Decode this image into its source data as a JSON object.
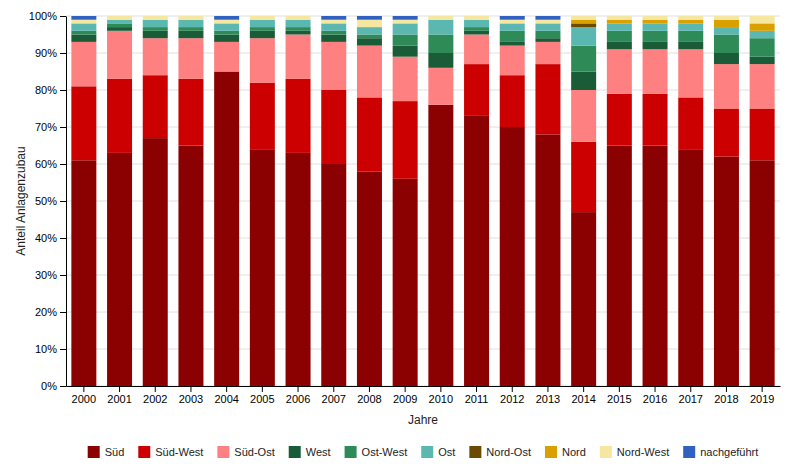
{
  "chart_data": {
    "type": "bar",
    "stacked": true,
    "xlabel": "Jahre",
    "ylabel": "Anteil Anlagenzubau",
    "categories": [
      "2000",
      "2001",
      "2002",
      "2003",
      "2004",
      "2005",
      "2006",
      "2007",
      "2008",
      "2009",
      "2010",
      "2011",
      "2012",
      "2013",
      "2014",
      "2015",
      "2016",
      "2017",
      "2018",
      "2019"
    ],
    "series": [
      {
        "name": "Süd",
        "color": "#8B0000",
        "values": [
          61,
          63,
          67,
          65,
          85,
          64,
          63,
          60,
          58,
          56,
          76,
          73,
          70,
          68,
          47,
          65,
          65,
          64,
          62,
          61
        ]
      },
      {
        "name": "Süd-West",
        "color": "#CC0000",
        "values": [
          20,
          20,
          17,
          18,
          0,
          18,
          20,
          20,
          20,
          21,
          0,
          14,
          14,
          19,
          19,
          14,
          14,
          14,
          13,
          14
        ]
      },
      {
        "name": "Süd-Ost",
        "color": "#FF8080",
        "values": [
          12,
          13,
          10,
          11,
          8,
          12,
          12,
          13,
          14,
          12,
          10,
          8,
          8,
          6,
          14,
          12,
          12,
          13,
          12,
          12
        ]
      },
      {
        "name": "West",
        "color": "#1A5C38",
        "values": [
          2,
          1,
          2,
          2,
          2,
          2,
          1,
          2,
          2,
          3,
          4,
          1,
          1,
          1,
          5,
          2,
          2,
          2,
          3,
          2
        ]
      },
      {
        "name": "Ost-West",
        "color": "#2E8B57",
        "values": [
          1,
          1,
          1,
          1,
          1,
          1,
          1,
          1,
          1,
          3,
          5,
          1,
          3,
          2,
          7,
          3,
          3,
          3,
          5,
          5
        ]
      },
      {
        "name": "Ost",
        "color": "#5BB8B0",
        "values": [
          2,
          1,
          2,
          2,
          2,
          2,
          2,
          2,
          2,
          3,
          4,
          2,
          2,
          2,
          5,
          2,
          2,
          2,
          2,
          2
        ]
      },
      {
        "name": "Nord-Ost",
        "color": "#6B4A00",
        "values": [
          0,
          0,
          0,
          0,
          0,
          0,
          0,
          0,
          0,
          0,
          0,
          0,
          0,
          0,
          1,
          0,
          0,
          0,
          0,
          0
        ]
      },
      {
        "name": "Nord",
        "color": "#DAA000",
        "values": [
          0,
          0,
          0,
          0,
          0,
          0,
          0,
          0,
          0,
          0,
          0,
          0,
          0,
          0,
          1,
          1,
          1,
          1,
          2,
          2
        ]
      },
      {
        "name": "Nord-West",
        "color": "#F5E6A0",
        "values": [
          1,
          1,
          1,
          1,
          1,
          1,
          1,
          1,
          2,
          1,
          1,
          1,
          1,
          1,
          1,
          1,
          1,
          1,
          1,
          2
        ]
      },
      {
        "name": "nachgeführt",
        "color": "#3060C0",
        "values": [
          1,
          0,
          0,
          0,
          1,
          0,
          0,
          1,
          1,
          1,
          0,
          0,
          1,
          1,
          0,
          0,
          0,
          0,
          0,
          0
        ]
      }
    ],
    "ylim": [
      0,
      100
    ],
    "yticks": [
      {
        "value": 0,
        "label": "0%"
      },
      {
        "value": 10,
        "label": "10%"
      },
      {
        "value": 20,
        "label": "20%"
      },
      {
        "value": 30,
        "label": "30%"
      },
      {
        "value": 40,
        "label": "40%"
      },
      {
        "value": 50,
        "label": "50%"
      },
      {
        "value": 60,
        "label": "60%"
      },
      {
        "value": 70,
        "label": "70%"
      },
      {
        "value": 80,
        "label": "80%"
      },
      {
        "value": 90,
        "label": "90%"
      },
      {
        "value": 100,
        "label": "100%"
      }
    ],
    "grid": true,
    "legend": "bottom"
  }
}
